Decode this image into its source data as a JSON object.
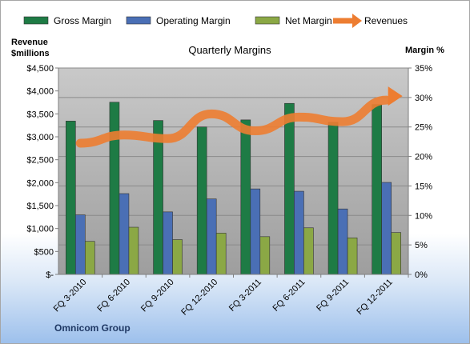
{
  "chart_data": {
    "type": "bar",
    "title": "Quarterly Margins",
    "company": "Omnicom Group",
    "ylabel_left_line1": "Revenue",
    "ylabel_left_line2": "$millions",
    "ylabel_right": "Margin %",
    "categories": [
      "FQ 3-2010",
      "FQ 6-2010",
      "FQ 9-2010",
      "FQ 12-2010",
      "FQ 3-2011",
      "FQ 6-2011",
      "FQ 9-2011",
      "FQ 12-2011"
    ],
    "left_axis": {
      "min": 0,
      "max": 4500,
      "ticks": [
        0,
        500,
        1000,
        1500,
        2000,
        2500,
        3000,
        3500,
        4000,
        4500
      ],
      "tick_labels": [
        "$-",
        "$500",
        "$1,000",
        "$1,500",
        "$2,000",
        "$2,500",
        "$3,000",
        "$3,500",
        "$4,000",
        "$4,500"
      ]
    },
    "right_axis": {
      "min": 0,
      "max": 35,
      "ticks": [
        0,
        5,
        10,
        15,
        20,
        25,
        30,
        35
      ],
      "tick_labels": [
        "0%",
        "5%",
        "10%",
        "15%",
        "20%",
        "25%",
        "30%",
        "35%"
      ]
    },
    "series": [
      {
        "name": "Gross Margin",
        "axis": "right",
        "kind": "bar",
        "color": "#1e7b45",
        "values": [
          26.0,
          29.2,
          26.1,
          25.0,
          26.2,
          29.0,
          25.8,
          28.8
        ]
      },
      {
        "name": "Operating Margin",
        "axis": "right",
        "kind": "bar",
        "color": "#4a6fb5",
        "values": [
          10.1,
          13.7,
          10.6,
          12.8,
          14.5,
          14.1,
          11.1,
          15.6
        ]
      },
      {
        "name": "Net Margin",
        "axis": "right",
        "kind": "bar",
        "color": "#8ba845",
        "values": [
          5.6,
          8.0,
          5.9,
          7.0,
          6.4,
          7.9,
          6.2,
          7.1
        ]
      },
      {
        "name": "Revenues",
        "axis": "left",
        "kind": "line",
        "color": "#ed7d31",
        "values": [
          2860,
          3040,
          2960,
          3500,
          3130,
          3430,
          3330,
          3800
        ]
      }
    ],
    "grid": true,
    "legend_position": "top"
  }
}
